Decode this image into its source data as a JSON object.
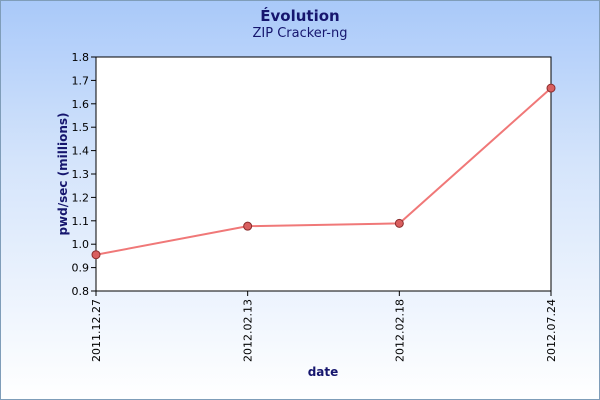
{
  "chart_data": {
    "type": "line",
    "title": "Évolution",
    "subtitle": "ZIP Cracker-ng",
    "xlabel": "date",
    "ylabel": "pwd/sec (millions)",
    "categories": [
      "2011.12.27",
      "2012.02.13",
      "2012.02.18",
      "2012.07.24"
    ],
    "series": [
      {
        "values": [
          0.955,
          1.077,
          1.089,
          1.667
        ]
      }
    ],
    "ylim": [
      0.8,
      1.8
    ],
    "yticks": [
      "0.8",
      "0.9",
      "1.0",
      "1.1",
      "1.2",
      "1.3",
      "1.4",
      "1.5",
      "1.6",
      "1.7",
      "1.8"
    ],
    "grid": false,
    "line_color": "#f07878",
    "marker_fill": "#d95f5f",
    "marker_stroke": "#8a2b2b",
    "axis_title_color": "#16166e"
  }
}
